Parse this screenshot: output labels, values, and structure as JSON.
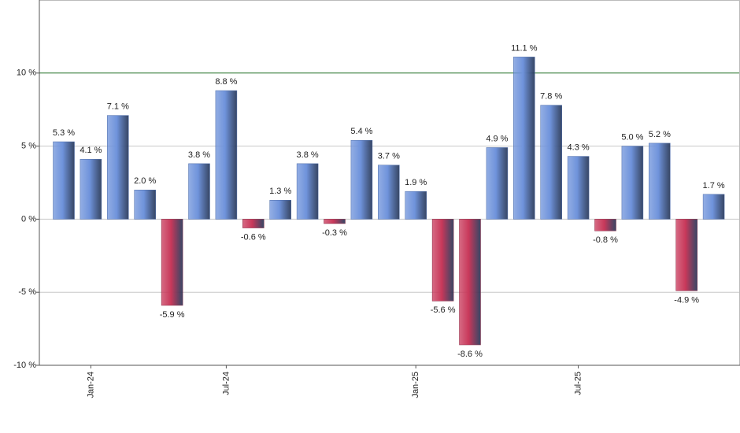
{
  "chart_data": {
    "type": "bar",
    "categories": [
      null,
      "Jan-24",
      null,
      null,
      null,
      null,
      "Jul-24",
      null,
      null,
      null,
      null,
      null,
      null,
      "Jan-25",
      null,
      null,
      null,
      null,
      null,
      "Jul-25",
      null,
      null,
      null,
      null,
      null
    ],
    "values": [
      5.3,
      4.1,
      7.1,
      2.0,
      -5.9,
      3.8,
      8.8,
      -0.6,
      1.3,
      3.8,
      -0.3,
      5.4,
      3.7,
      1.9,
      -5.6,
      -8.6,
      4.9,
      11.1,
      7.8,
      4.3,
      -0.8,
      5.0,
      5.2,
      -4.9,
      1.7
    ],
    "value_labels": [
      "5.3 %",
      "4.1 %",
      "7.1 %",
      "2.0 %",
      "-5.9 %",
      "3.8 %",
      "8.8 %",
      "-0.6 %",
      "1.3 %",
      "3.8 %",
      "-0.3 %",
      "5.4 %",
      "3.7 %",
      "1.9 %",
      "-5.6 %",
      "-8.6 %",
      "4.9 %",
      "11.1 %",
      "7.8 %",
      "4.3 %",
      "-0.8 %",
      "5.0 %",
      "5.2 %",
      "-4.9 %",
      "1.7 %"
    ],
    "positive_color": "#6f93db",
    "negative_color": "#c8385a",
    "ylim": [
      -10,
      15
    ],
    "yticks": [
      {
        "value": -10,
        "label": "-10 %"
      },
      {
        "value": -5,
        "label": "-5 %"
      },
      {
        "value": 0,
        "label": "0 %"
      },
      {
        "value": 5,
        "label": "5 %"
      },
      {
        "value": 10,
        "label": "10 %"
      }
    ],
    "grid": true,
    "reference_line": {
      "value": 10,
      "color": "#2e7d32"
    }
  }
}
